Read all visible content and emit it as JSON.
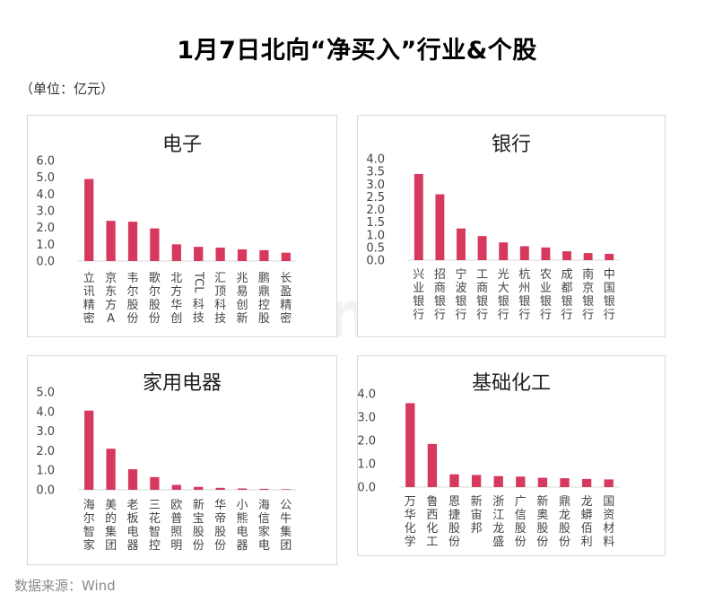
{
  "title": "1月7日北向“净买入”行业&个股",
  "unit_note": "（单位：亿元）",
  "source_note": "数据来源：Wind",
  "watermark": "Win.d",
  "colors": {
    "bar": "#d6385e",
    "axis": "#d9d9d9",
    "text": "#444444"
  },
  "chart_data": [
    {
      "type": "bar",
      "title": "电子",
      "categories": [
        "立讯精密",
        "京东方A",
        "韦尔股份",
        "歌尔股份",
        "北方华创",
        "TCL科技",
        "汇顶科技",
        "兆易创新",
        "鹏鼎控股",
        "长盈精密"
      ],
      "values": [
        4.9,
        2.4,
        2.35,
        1.95,
        1.0,
        0.85,
        0.8,
        0.7,
        0.65,
        0.5
      ],
      "ylim": [
        0,
        6
      ],
      "yticks": [
        "0.0",
        "1.0",
        "2.0",
        "3.0",
        "4.0",
        "5.0",
        "6.0"
      ],
      "grid": false
    },
    {
      "type": "bar",
      "title": "银行",
      "categories": [
        "兴业银行",
        "招商银行",
        "宁波银行",
        "工商银行",
        "光大银行",
        "杭州银行",
        "农业银行",
        "成都银行",
        "南京银行",
        "中国银行"
      ],
      "values": [
        3.4,
        2.6,
        1.25,
        0.95,
        0.7,
        0.55,
        0.5,
        0.35,
        0.28,
        0.25
      ],
      "ylim": [
        0,
        4
      ],
      "yticks": [
        "0.0",
        "0.5",
        "1.0",
        "1.5",
        "2.0",
        "2.5",
        "3.0",
        "3.5",
        "4.0"
      ],
      "grid": false
    },
    {
      "type": "bar",
      "title": "家用电器",
      "categories": [
        "海尔智家",
        "美的集团",
        "老板电器",
        "三花智控",
        "欧普照明",
        "新宝股份",
        "华帝股份",
        "小熊电器",
        "海信家电",
        "公牛集团"
      ],
      "values": [
        4.05,
        2.1,
        1.05,
        0.65,
        0.25,
        0.15,
        0.1,
        0.07,
        0.05,
        0.03
      ],
      "ylim": [
        0,
        5
      ],
      "yticks": [
        "0.0",
        "1.0",
        "2.0",
        "3.0",
        "4.0",
        "5.0"
      ],
      "grid": false
    },
    {
      "type": "bar",
      "title": "基础化工",
      "categories": [
        "万华化学",
        "鲁西化工",
        "恩捷股份",
        "新宙邦",
        "浙江龙盛",
        "广信股份",
        "新奥股份",
        "鼎龙股份",
        "龙蟒佰利",
        "国资材料"
      ],
      "values": [
        3.6,
        1.85,
        0.55,
        0.52,
        0.47,
        0.45,
        0.4,
        0.38,
        0.35,
        0.33
      ],
      "ylim": [
        0,
        4
      ],
      "yticks": [
        "0.0",
        "1.0",
        "2.0",
        "3.0",
        "4.0"
      ],
      "grid": false
    }
  ]
}
